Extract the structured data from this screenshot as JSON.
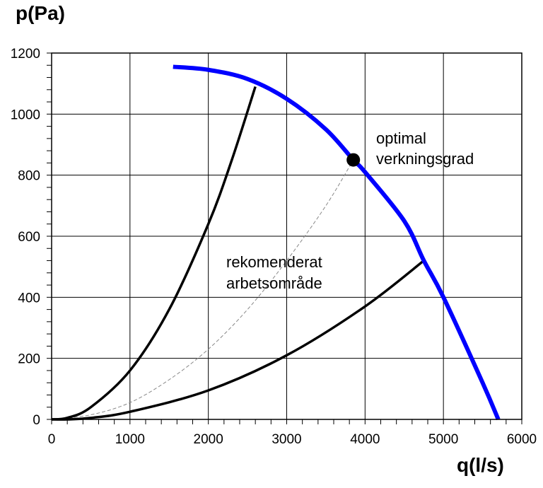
{
  "chart_data": {
    "type": "line",
    "xlabel": "q(l/s)",
    "ylabel": "p(Pa)",
    "xlim": [
      0,
      6000
    ],
    "ylim": [
      0,
      1200
    ],
    "x_ticks": [
      0,
      1000,
      2000,
      3000,
      4000,
      5000,
      6000
    ],
    "y_ticks": [
      0,
      200,
      400,
      600,
      800,
      1000,
      1200
    ],
    "grid": true,
    "series": [
      {
        "color": "#0000ff",
        "x": [
          1550,
          2000,
          2500,
          3000,
          3500,
          3850,
          4000,
          4500,
          4750,
          5000,
          5500,
          5700
        ],
        "y": [
          1155,
          1145,
          1115,
          1050,
          950,
          850,
          810,
          650,
          520,
          400,
          120,
          0
        ]
      },
      {
        "color": "#000000",
        "x": [
          0,
          200,
          500,
          1000,
          1500,
          2000,
          2300,
          2600
        ],
        "y": [
          0,
          5,
          40,
          160,
          360,
          640,
          850,
          1090
        ]
      },
      {
        "color": "#000000",
        "x": [
          0,
          200,
          500,
          1000,
          2000,
          3000,
          4000,
          4750
        ],
        "y": [
          0,
          0,
          5,
          25,
          95,
          210,
          370,
          520
        ]
      },
      {
        "color": "#888888",
        "dashed": true,
        "x": [
          0,
          500,
          1000,
          1500,
          2000,
          2500,
          3000,
          3500,
          3850
        ],
        "y": [
          0,
          15,
          55,
          130,
          230,
          360,
          520,
          700,
          850
        ]
      }
    ],
    "points": [
      {
        "x": 3850,
        "y": 850,
        "color": "#000000"
      }
    ],
    "annotations": [
      {
        "lines": [
          "optimal",
          "verkningsgrad"
        ]
      },
      {
        "lines": [
          "rekomenderat",
          "arbetsområde"
        ]
      }
    ]
  }
}
